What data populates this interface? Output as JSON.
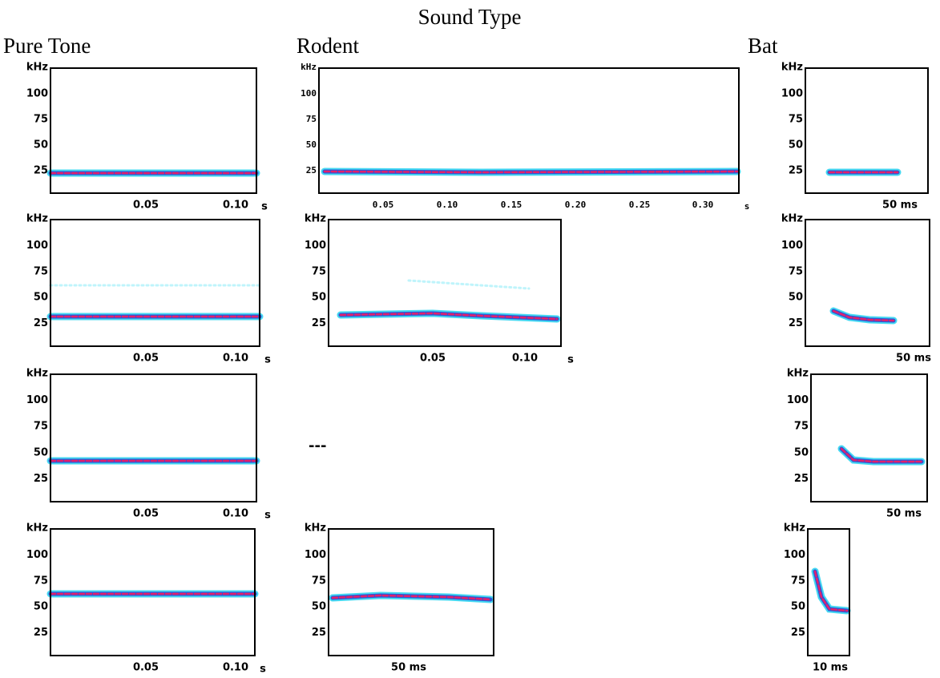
{
  "title": "Sound Type",
  "columns": [
    {
      "label": "Pure Tone",
      "panels": [
        {
          "y_unit": "kHz",
          "y_ticks": [
            "100",
            "75",
            "50",
            "25"
          ],
          "x_ticks": [
            "0.05",
            "0.10"
          ],
          "x_unit": "s"
        },
        {
          "y_unit": "kHz",
          "y_ticks": [
            "100",
            "75",
            "50",
            "25"
          ],
          "x_ticks": [
            "0.05",
            "0.10"
          ],
          "x_unit": "s"
        },
        {
          "y_unit": "kHz",
          "y_ticks": [
            "100",
            "75",
            "50",
            "25"
          ],
          "x_ticks": [
            "0.05",
            "0.10"
          ],
          "x_unit": "s"
        },
        {
          "y_unit": "kHz",
          "y_ticks": [
            "100",
            "75",
            "50",
            "25"
          ],
          "x_ticks": [
            "0.05",
            "0.10"
          ],
          "x_unit": "s"
        }
      ]
    },
    {
      "label": "Rodent",
      "panels": [
        {
          "y_unit": "kHz",
          "y_ticks": [
            "100",
            "75",
            "50",
            "25"
          ],
          "x_ticks": [
            "0.05",
            "0.10",
            "0.15",
            "0.20",
            "0.25",
            "0.30"
          ],
          "x_unit": "s"
        },
        {
          "y_unit": "kHz",
          "y_ticks": [
            "100",
            "75",
            "50",
            "25"
          ],
          "x_ticks": [
            "0.05",
            "0.10"
          ],
          "x_unit": "s"
        },
        {
          "placeholder": "---"
        },
        {
          "y_unit": "kHz",
          "y_ticks": [
            "100",
            "75",
            "50",
            "25"
          ],
          "x_ticks": [
            "50 ms"
          ]
        }
      ]
    },
    {
      "label": "Bat",
      "panels": [
        {
          "y_unit": "kHz",
          "y_ticks": [
            "100",
            "75",
            "50",
            "25"
          ],
          "x_ticks": [
            "50 ms"
          ]
        },
        {
          "y_unit": "kHz",
          "y_ticks": [
            "100",
            "75",
            "50",
            "25"
          ],
          "x_ticks": [
            "50 ms"
          ]
        },
        {
          "y_unit": "kHz",
          "y_ticks": [
            "100",
            "75",
            "50",
            "25"
          ],
          "x_ticks": [
            "50 ms"
          ]
        },
        {
          "y_unit": "kHz",
          "y_ticks": [
            "100",
            "75",
            "50",
            "25"
          ],
          "x_ticks": [
            "10 ms"
          ]
        }
      ]
    }
  ]
}
